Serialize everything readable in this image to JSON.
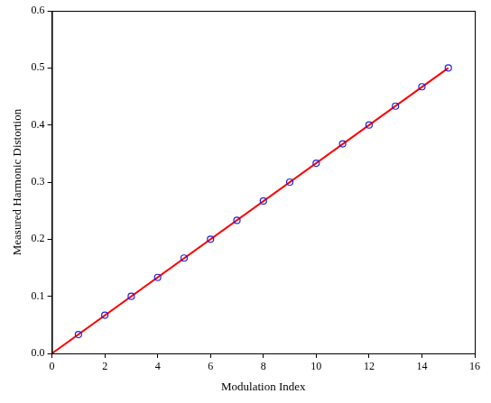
{
  "chart_data": {
    "type": "scatter",
    "x_label": "Modulation Index",
    "y_label": "Measured Harmonic Distortion",
    "series": [
      {
        "color": "#2020e0",
        "marker": "circle",
        "x": [
          1,
          2,
          3,
          4,
          5,
          6,
          7,
          8,
          9,
          10,
          11,
          12,
          13,
          14,
          15
        ],
        "values": [
          0.033,
          0.067,
          0.1,
          0.133,
          0.167,
          0.2,
          0.233,
          0.267,
          0.3,
          0.333,
          0.367,
          0.4,
          0.433,
          0.467,
          0.5
        ]
      },
      {
        "color": "#ff0000",
        "type": "line",
        "line_style": "solid",
        "x": [
          0,
          15
        ],
        "values": [
          0,
          0.5
        ]
      }
    ],
    "xlim": [
      0,
      16
    ],
    "xticks": [
      0,
      2,
      4,
      6,
      8,
      10,
      12,
      14,
      16
    ],
    "ylim": [
      0,
      0.6
    ],
    "yticks": [
      {
        "value": 0,
        "label": "0.0"
      },
      {
        "value": 0.1,
        "label": "0.1"
      },
      {
        "value": 0.2,
        "label": "0.2"
      },
      {
        "value": 0.3,
        "label": "0.3"
      },
      {
        "value": 0.4,
        "label": "0.4"
      },
      {
        "value": 0.5,
        "label": "0.5"
      },
      {
        "value": 0.6,
        "label": "0.6"
      }
    ],
    "grid": false,
    "legend": false
  }
}
